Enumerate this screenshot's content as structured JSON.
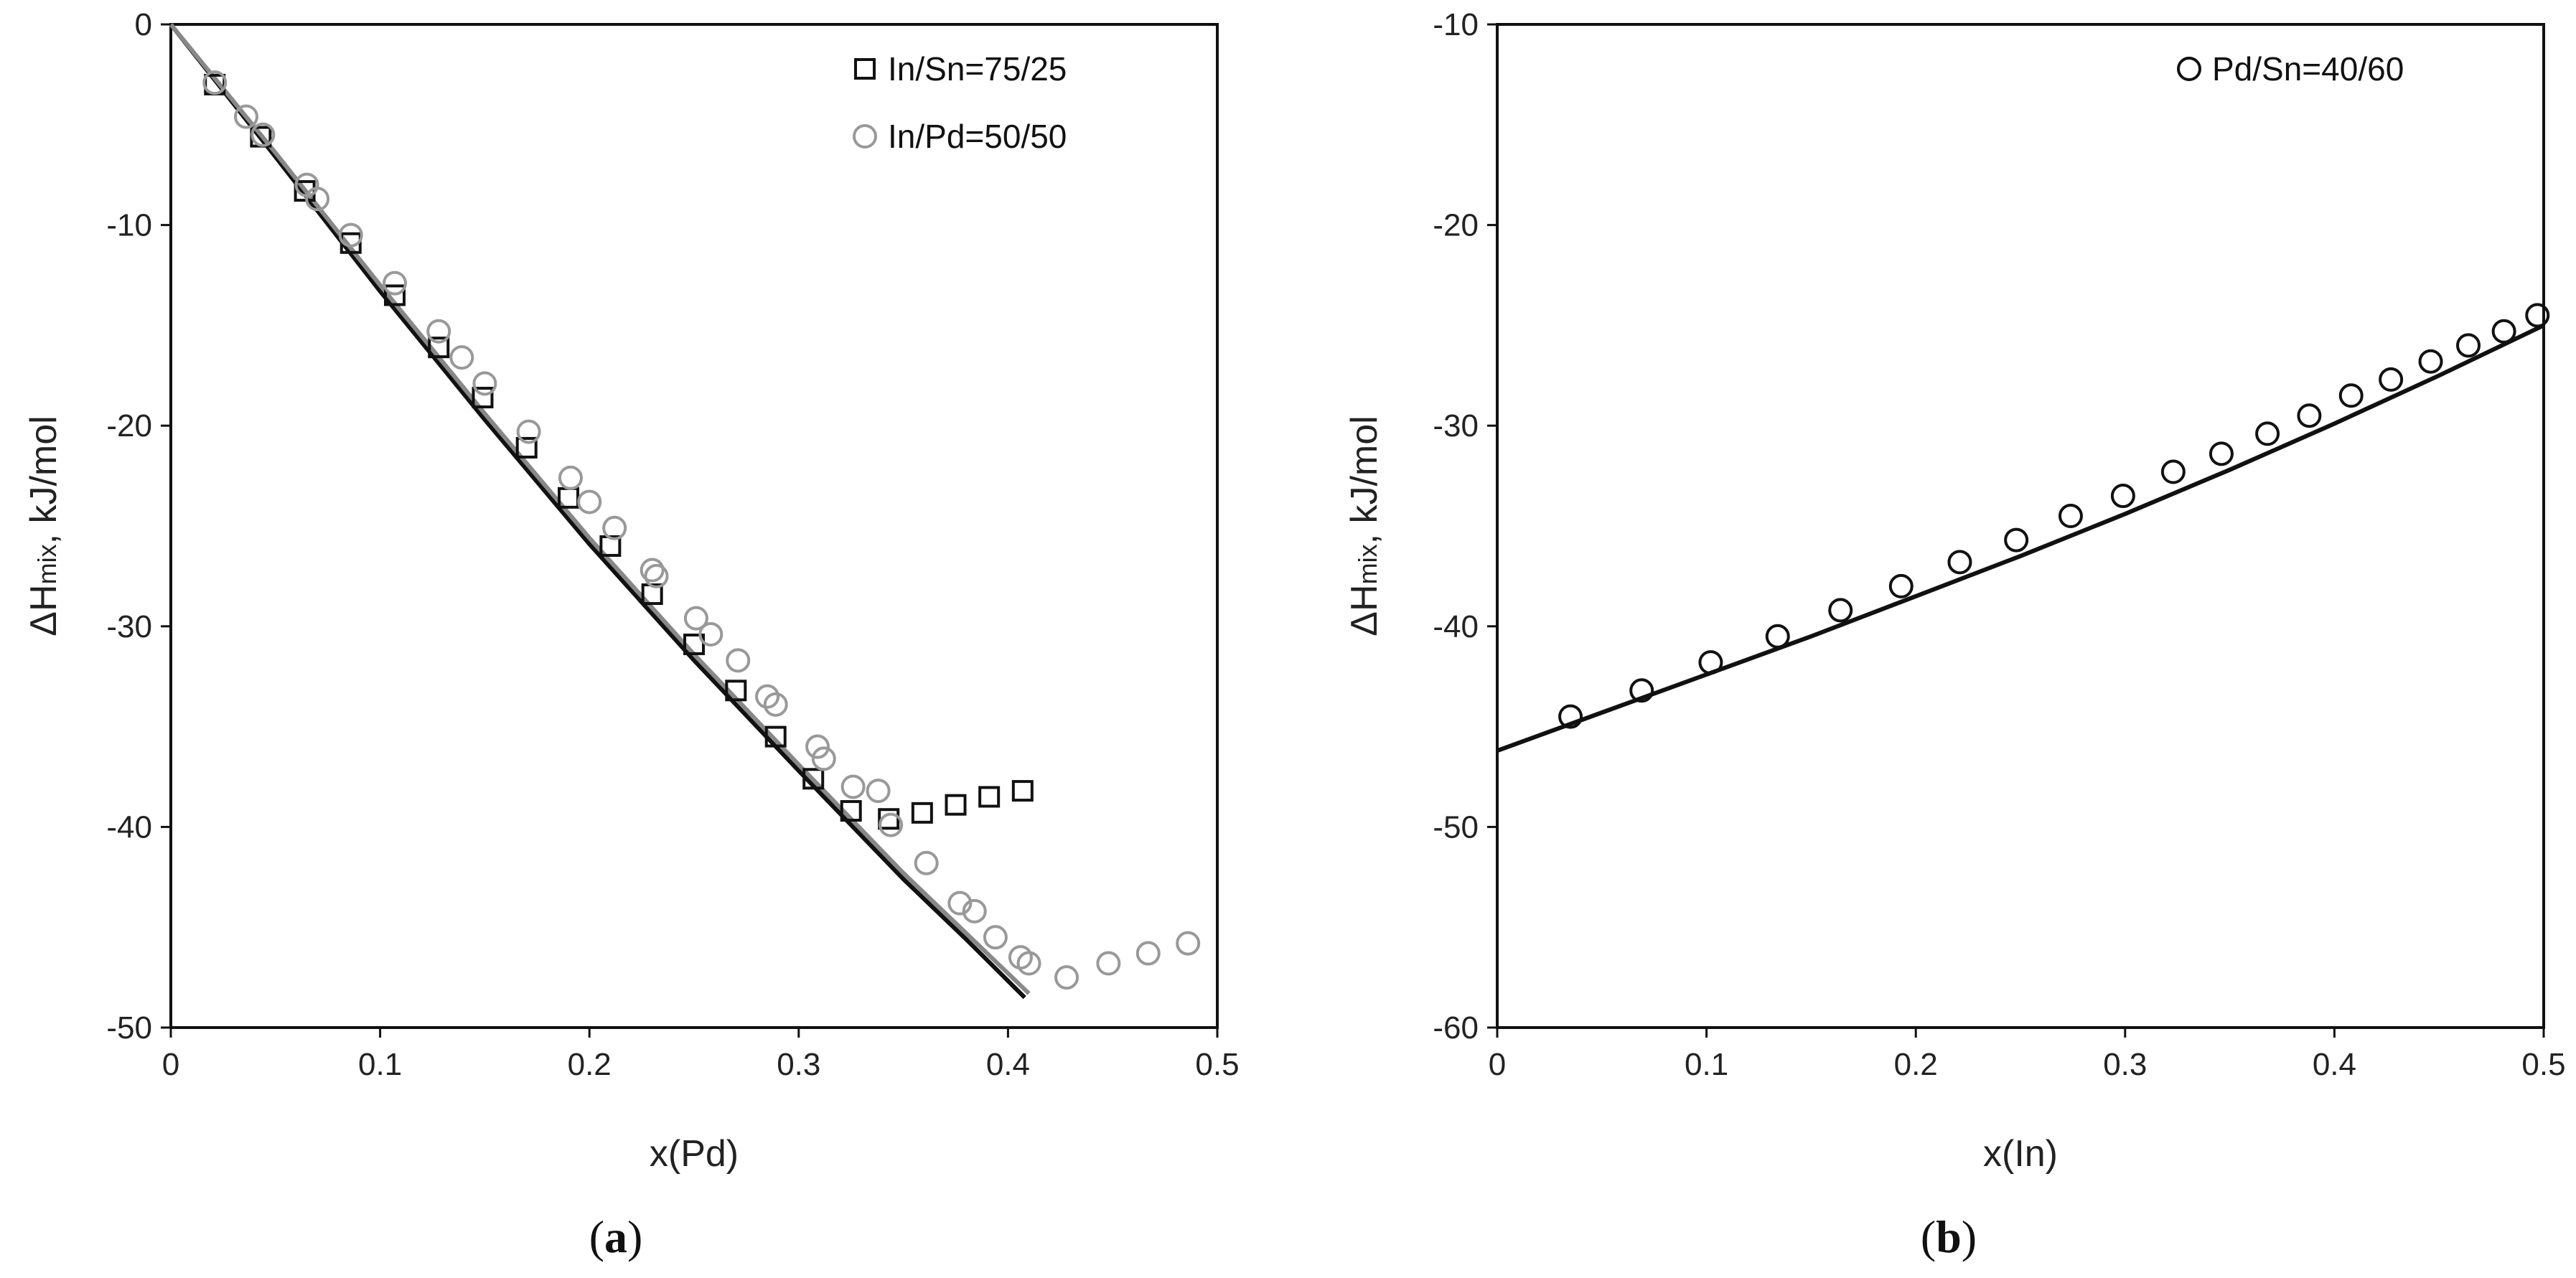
{
  "chart_data": [
    {
      "id": "a",
      "type": "scatter",
      "panel_label": "(a)",
      "panel_letter": "a",
      "xlabel": "x(Pd)",
      "ylabel_main": "ΔH",
      "ylabel_sub": "mix",
      "ylabel_tail": ", kJ/mol",
      "xlim": [
        0,
        0.5
      ],
      "ylim": [
        -50,
        0
      ],
      "xticks": [
        0,
        0.1,
        0.2,
        0.3,
        0.4,
        0.5
      ],
      "xtick_labels": [
        "0",
        "0.1",
        "0.2",
        "0.3",
        "0.4",
        "0.5"
      ],
      "yticks": [
        0,
        -10,
        -20,
        -30,
        -40,
        -50
      ],
      "ytick_labels": [
        "0",
        "-10",
        "-20",
        "-30",
        "-40",
        "-50"
      ],
      "legend_position": "top-right",
      "series": [
        {
          "name": "In/Sn=75/25",
          "marker": "square",
          "color": "#111111",
          "x": [
            0.021,
            0.043,
            0.064,
            0.086,
            0.107,
            0.128,
            0.149,
            0.17,
            0.19,
            0.21,
            0.23,
            0.25,
            0.27,
            0.289,
            0.307,
            0.325,
            0.343,
            0.359,
            0.375,
            0.391,
            0.407
          ],
          "y": [
            -3.0,
            -5.6,
            -8.3,
            -10.9,
            -13.5,
            -16.1,
            -18.6,
            -21.1,
            -23.6,
            -26.0,
            -28.4,
            -30.9,
            -33.2,
            -35.5,
            -37.6,
            -39.2,
            -39.6,
            -39.3,
            -38.9,
            -38.5,
            -38.2
          ]
        },
        {
          "name": "In/Pd=50/50",
          "marker": "circle",
          "color": "#999999",
          "x": [
            0.021,
            0.036,
            0.044,
            0.065,
            0.07,
            0.086,
            0.107,
            0.128,
            0.139,
            0.15,
            0.171,
            0.191,
            0.2,
            0.212,
            0.23,
            0.232,
            0.251,
            0.258,
            0.271,
            0.285,
            0.289,
            0.309,
            0.312,
            0.326,
            0.338,
            0.344,
            0.361,
            0.377,
            0.384,
            0.394,
            0.406,
            0.41,
            0.428,
            0.448,
            0.467,
            0.486
          ],
          "y": [
            -2.9,
            -4.6,
            -5.5,
            -8.0,
            -8.7,
            -10.5,
            -12.9,
            -15.3,
            -16.6,
            -17.9,
            -20.3,
            -22.6,
            -23.8,
            -25.1,
            -27.2,
            -27.5,
            -29.6,
            -30.4,
            -31.7,
            -33.5,
            -33.9,
            -36.0,
            -36.6,
            -38.0,
            -38.2,
            -39.9,
            -41.8,
            -43.8,
            -44.2,
            -45.5,
            -46.5,
            -46.8,
            -47.5,
            -46.8,
            -46.3,
            -45.8
          ]
        }
      ],
      "curves": [
        {
          "name": "model-black",
          "color": "#111111",
          "x": [
            0,
            0.05,
            0.1,
            0.15,
            0.2,
            0.25,
            0.3,
            0.35,
            0.38,
            0.408
          ],
          "y": [
            0,
            -6.6,
            -13.3,
            -19.7,
            -25.9,
            -31.7,
            -37.2,
            -42.6,
            -45.6,
            -48.5
          ]
        },
        {
          "name": "model-gray",
          "color": "#888888",
          "x": [
            0,
            0.05,
            0.1,
            0.15,
            0.2,
            0.25,
            0.3,
            0.35,
            0.38,
            0.41
          ],
          "y": [
            0,
            -6.4,
            -13.0,
            -19.4,
            -25.6,
            -31.4,
            -36.9,
            -42.3,
            -45.3,
            -48.3
          ]
        }
      ]
    },
    {
      "id": "b",
      "type": "scatter",
      "panel_label": "(b)",
      "panel_letter": "b",
      "xlabel": "x(In)",
      "ylabel_main": "ΔH",
      "ylabel_sub": "mix",
      "ylabel_tail": ", kJ/mol",
      "xlim": [
        0,
        0.5
      ],
      "ylim": [
        -60,
        -10
      ],
      "xticks": [
        0,
        0.1,
        0.2,
        0.3,
        0.4,
        0.5
      ],
      "xtick_labels": [
        "0",
        "0.1",
        "0.2",
        "0.3",
        "0.4",
        "0.5"
      ],
      "yticks": [
        -10,
        -20,
        -30,
        -40,
        -50,
        -60
      ],
      "ytick_labels": [
        "-10",
        "-20",
        "-30",
        "-40",
        "-50",
        "-60"
      ],
      "legend_position": "top-right",
      "series": [
        {
          "name": "Pd/Sn=40/60",
          "marker": "circle",
          "color": "#111111",
          "x": [
            0.035,
            0.069,
            0.102,
            0.134,
            0.164,
            0.193,
            0.221,
            0.248,
            0.274,
            0.299,
            0.323,
            0.346,
            0.368,
            0.388,
            0.408,
            0.427,
            0.446,
            0.464,
            0.481,
            0.497
          ],
          "y": [
            -44.5,
            -43.2,
            -41.8,
            -40.5,
            -39.2,
            -38.0,
            -36.8,
            -35.7,
            -34.5,
            -33.5,
            -32.3,
            -31.4,
            -30.4,
            -29.5,
            -28.5,
            -27.7,
            -26.8,
            -26.0,
            -25.3,
            -24.5
          ]
        }
      ],
      "curves": [
        {
          "name": "model-black",
          "color": "#111111",
          "x": [
            0,
            0.05,
            0.1,
            0.15,
            0.2,
            0.25,
            0.3,
            0.35,
            0.4,
            0.45,
            0.5
          ],
          "y": [
            -46.2,
            -44.3,
            -42.4,
            -40.5,
            -38.5,
            -36.5,
            -34.4,
            -32.2,
            -29.9,
            -27.5,
            -25.0
          ]
        }
      ]
    }
  ]
}
